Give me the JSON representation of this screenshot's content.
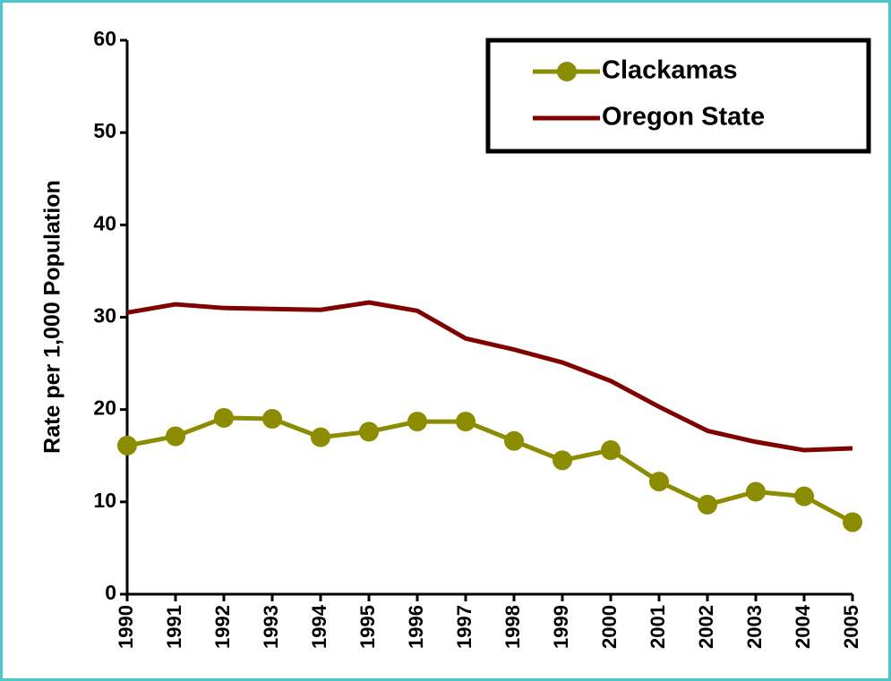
{
  "chart_data": {
    "type": "line",
    "y_label": "Rate per 1,000 Population",
    "categories": [
      "1990",
      "1991",
      "1992",
      "1993",
      "1994",
      "1995",
      "1996",
      "1997",
      "1998",
      "1999",
      "2000",
      "2001",
      "2002",
      "2003",
      "2004",
      "2005"
    ],
    "series": [
      {
        "name": "Clackamas",
        "color": "#8c8c00",
        "marker": "circle",
        "values": [
          16.1,
          17.1,
          19.1,
          19.0,
          17.0,
          17.6,
          18.7,
          18.7,
          16.6,
          14.5,
          15.6,
          12.2,
          9.7,
          11.1,
          10.6,
          7.8
        ]
      },
      {
        "name": "Oregon State",
        "color": "#800000",
        "marker": "none",
        "values": [
          30.5,
          31.4,
          31.0,
          30.9,
          30.8,
          31.6,
          30.7,
          27.7,
          26.5,
          25.1,
          23.1,
          20.3,
          17.7,
          16.5,
          15.6,
          15.8
        ]
      }
    ],
    "ylim": [
      0,
      60
    ],
    "yticks": [
      0,
      10,
      20,
      30,
      40,
      50,
      60
    ],
    "grid": false,
    "legend": "upper right"
  }
}
